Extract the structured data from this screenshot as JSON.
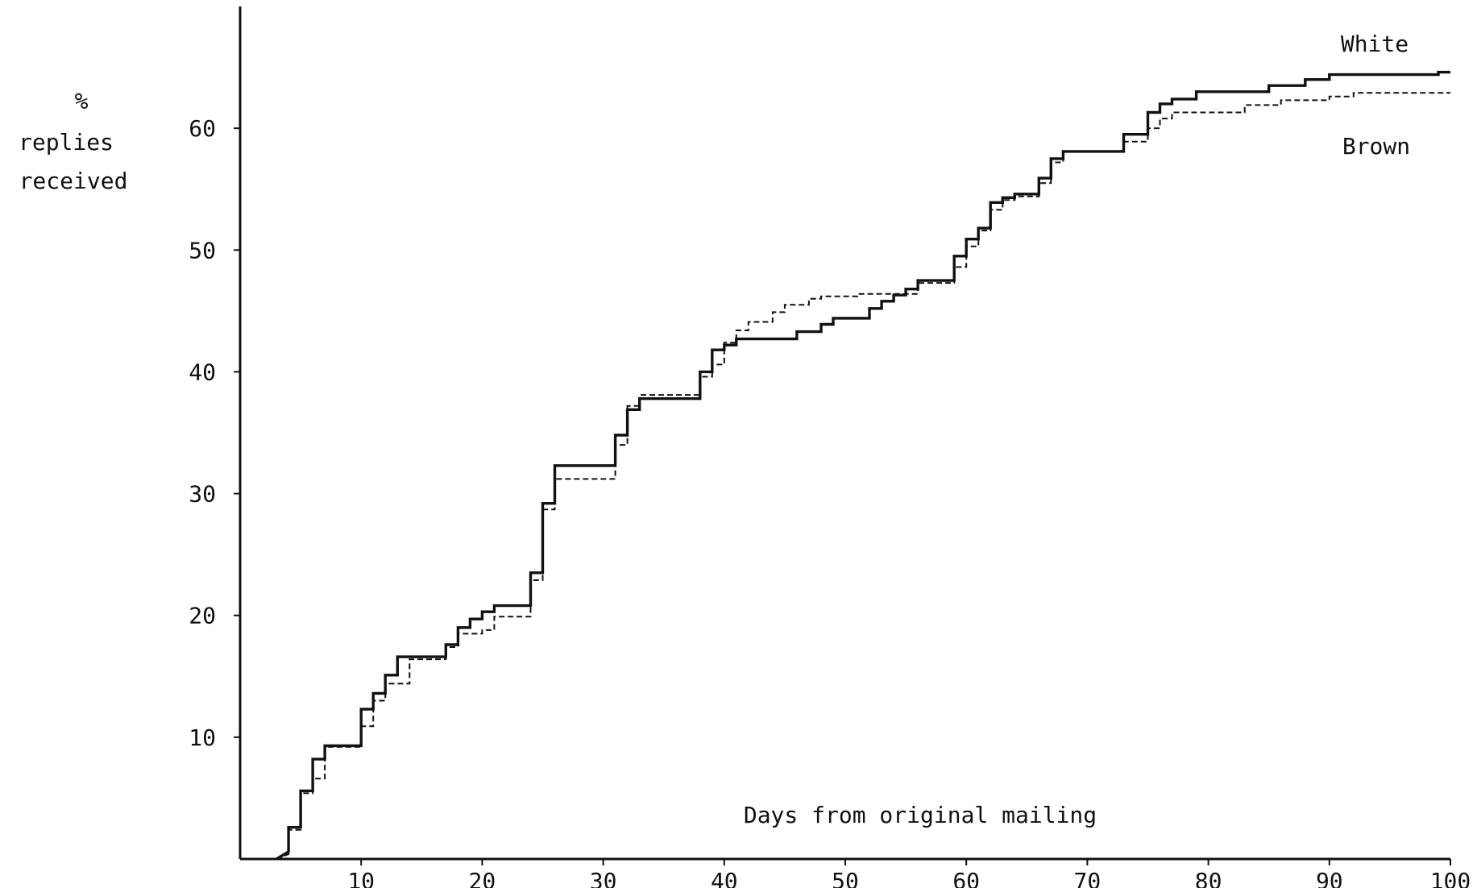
{
  "chart_data": {
    "type": "line",
    "title": "",
    "xlabel": "Days from original mailing",
    "ylabel": [
      "%",
      "replies",
      "received"
    ],
    "xlim": [
      0,
      100
    ],
    "ylim": [
      0,
      70
    ],
    "x_ticks": [
      10,
      20,
      30,
      40,
      50,
      60,
      70,
      80,
      90,
      100
    ],
    "y_ticks": [
      10,
      20,
      30,
      40,
      50,
      60
    ],
    "grid": false,
    "step": true,
    "series": [
      {
        "name": "White",
        "style": "solid",
        "color": "#111111",
        "points": [
          [
            3,
            0
          ],
          [
            4,
            0.6
          ],
          [
            4,
            2.6
          ],
          [
            5,
            2.6
          ],
          [
            5,
            5.6
          ],
          [
            6,
            5.6
          ],
          [
            6,
            8.2
          ],
          [
            7,
            8.2
          ],
          [
            7,
            9.3
          ],
          [
            10,
            9.3
          ],
          [
            10,
            12.3
          ],
          [
            11,
            12.3
          ],
          [
            11,
            13.6
          ],
          [
            12,
            13.6
          ],
          [
            12,
            15.1
          ],
          [
            13,
            15.1
          ],
          [
            13,
            16.6
          ],
          [
            17,
            16.6
          ],
          [
            17,
            17.6
          ],
          [
            18,
            17.6
          ],
          [
            18,
            19.0
          ],
          [
            19,
            19.0
          ],
          [
            19,
            19.7
          ],
          [
            20,
            19.7
          ],
          [
            20,
            20.3
          ],
          [
            21,
            20.3
          ],
          [
            21,
            20.8
          ],
          [
            24,
            20.8
          ],
          [
            24,
            23.5
          ],
          [
            25,
            23.5
          ],
          [
            25,
            29.2
          ],
          [
            26,
            29.2
          ],
          [
            26,
            32.3
          ],
          [
            31,
            32.3
          ],
          [
            31,
            34.8
          ],
          [
            32,
            34.8
          ],
          [
            32,
            36.9
          ],
          [
            33,
            36.9
          ],
          [
            33,
            37.8
          ],
          [
            38,
            37.8
          ],
          [
            38,
            40.0
          ],
          [
            39,
            40.0
          ],
          [
            39,
            41.8
          ],
          [
            40,
            41.8
          ],
          [
            40,
            42.2
          ],
          [
            41,
            42.2
          ],
          [
            41,
            42.7
          ],
          [
            46,
            42.7
          ],
          [
            46,
            43.3
          ],
          [
            48,
            43.3
          ],
          [
            48,
            43.9
          ],
          [
            49,
            43.9
          ],
          [
            49,
            44.4
          ],
          [
            52,
            44.4
          ],
          [
            52,
            45.2
          ],
          [
            53,
            45.2
          ],
          [
            53,
            45.8
          ],
          [
            54,
            45.8
          ],
          [
            54,
            46.3
          ],
          [
            55,
            46.3
          ],
          [
            55,
            46.8
          ],
          [
            56,
            46.8
          ],
          [
            56,
            47.5
          ],
          [
            59,
            47.5
          ],
          [
            59,
            49.5
          ],
          [
            60,
            49.5
          ],
          [
            60,
            50.9
          ],
          [
            61,
            50.9
          ],
          [
            61,
            51.8
          ],
          [
            62,
            51.8
          ],
          [
            62,
            53.9
          ],
          [
            63,
            53.9
          ],
          [
            63,
            54.3
          ],
          [
            64,
            54.3
          ],
          [
            64,
            54.6
          ],
          [
            66,
            54.6
          ],
          [
            66,
            55.9
          ],
          [
            67,
            55.9
          ],
          [
            67,
            57.5
          ],
          [
            68,
            57.5
          ],
          [
            68,
            58.1
          ],
          [
            73,
            58.1
          ],
          [
            73,
            59.5
          ],
          [
            75,
            59.5
          ],
          [
            75,
            61.3
          ],
          [
            76,
            61.3
          ],
          [
            76,
            62.0
          ],
          [
            77,
            62.0
          ],
          [
            77,
            62.4
          ],
          [
            79,
            62.4
          ],
          [
            79,
            63.0
          ],
          [
            85,
            63.0
          ],
          [
            85,
            63.5
          ],
          [
            88,
            63.5
          ],
          [
            88,
            64.0
          ],
          [
            90,
            64.0
          ],
          [
            90,
            64.4
          ],
          [
            99,
            64.4
          ],
          [
            99,
            64.6
          ],
          [
            100,
            64.6
          ]
        ]
      },
      {
        "name": "Brown",
        "style": "dashed",
        "color": "#111111",
        "points": [
          [
            3,
            0
          ],
          [
            4,
            0.4
          ],
          [
            4,
            2.4
          ],
          [
            5,
            2.4
          ],
          [
            5,
            5.4
          ],
          [
            6,
            5.4
          ],
          [
            6,
            6.6
          ],
          [
            7,
            6.6
          ],
          [
            7,
            9.2
          ],
          [
            10,
            9.2
          ],
          [
            10,
            10.9
          ],
          [
            11,
            10.9
          ],
          [
            11,
            13.0
          ],
          [
            12,
            13.0
          ],
          [
            12,
            14.4
          ],
          [
            14,
            14.4
          ],
          [
            14,
            16.4
          ],
          [
            17,
            16.4
          ],
          [
            17,
            17.4
          ],
          [
            18,
            17.4
          ],
          [
            18,
            18.5
          ],
          [
            20,
            18.5
          ],
          [
            20,
            18.8
          ],
          [
            21,
            18.8
          ],
          [
            21,
            19.9
          ],
          [
            24,
            19.9
          ],
          [
            24,
            22.9
          ],
          [
            25,
            22.9
          ],
          [
            25,
            28.7
          ],
          [
            26,
            28.7
          ],
          [
            26,
            31.2
          ],
          [
            31,
            31.2
          ],
          [
            31,
            34.0
          ],
          [
            32,
            34.0
          ],
          [
            32,
            37.2
          ],
          [
            33,
            37.2
          ],
          [
            33,
            38.1
          ],
          [
            38,
            38.1
          ],
          [
            38,
            39.6
          ],
          [
            39,
            39.6
          ],
          [
            39,
            40.6
          ],
          [
            40,
            40.6
          ],
          [
            40,
            42.4
          ],
          [
            41,
            42.4
          ],
          [
            41,
            43.4
          ],
          [
            42,
            43.4
          ],
          [
            42,
            44.1
          ],
          [
            44,
            44.1
          ],
          [
            44,
            44.9
          ],
          [
            45,
            44.9
          ],
          [
            45,
            45.5
          ],
          [
            47,
            45.5
          ],
          [
            47,
            46.0
          ],
          [
            48,
            46.0
          ],
          [
            48,
            46.2
          ],
          [
            51,
            46.2
          ],
          [
            51,
            46.4
          ],
          [
            56,
            46.4
          ],
          [
            56,
            47.3
          ],
          [
            59,
            47.3
          ],
          [
            59,
            48.6
          ],
          [
            60,
            48.6
          ],
          [
            60,
            50.3
          ],
          [
            61,
            50.3
          ],
          [
            61,
            51.6
          ],
          [
            62,
            51.6
          ],
          [
            62,
            53.3
          ],
          [
            63,
            53.3
          ],
          [
            63,
            54.1
          ],
          [
            64,
            54.1
          ],
          [
            64,
            54.4
          ],
          [
            66,
            54.4
          ],
          [
            66,
            55.5
          ],
          [
            67,
            55.5
          ],
          [
            67,
            57.2
          ],
          [
            68,
            57.2
          ],
          [
            68,
            58.1
          ],
          [
            73,
            58.1
          ],
          [
            73,
            58.9
          ],
          [
            75,
            58.9
          ],
          [
            75,
            60.0
          ],
          [
            76,
            60.0
          ],
          [
            76,
            60.8
          ],
          [
            77,
            60.8
          ],
          [
            77,
            61.3
          ],
          [
            83,
            61.3
          ],
          [
            83,
            61.9
          ],
          [
            86,
            61.9
          ],
          [
            86,
            62.3
          ],
          [
            90,
            62.3
          ],
          [
            90,
            62.6
          ],
          [
            92,
            62.6
          ],
          [
            92,
            62.9
          ],
          [
            100,
            62.9
          ]
        ]
      }
    ]
  }
}
